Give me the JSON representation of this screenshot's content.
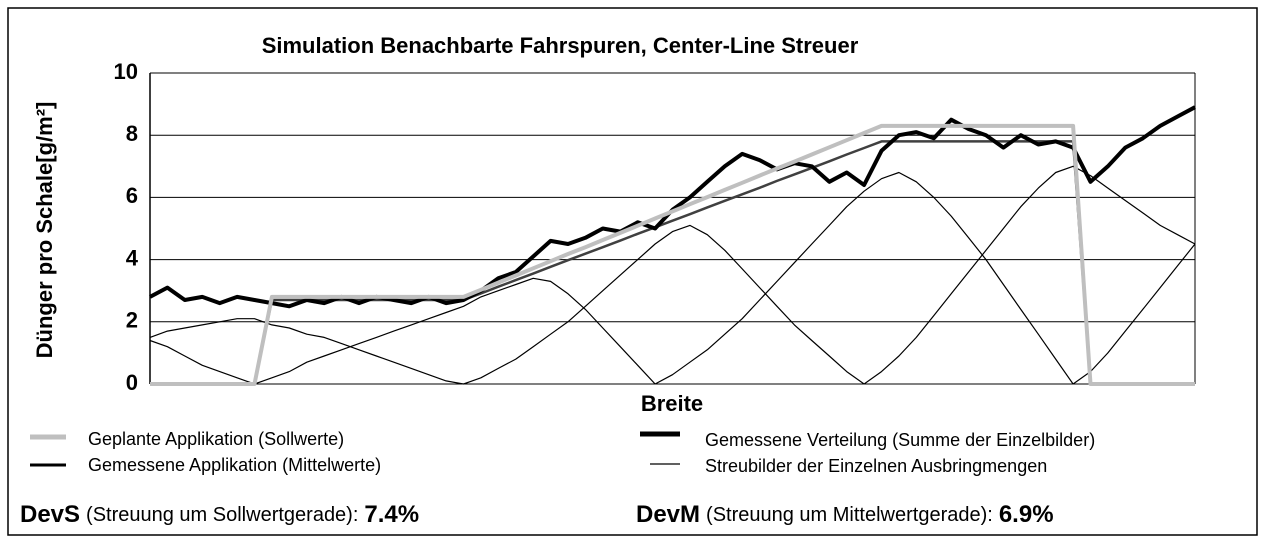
{
  "chart_data": {
    "type": "line",
    "title": "Simulation Benachbarte Fahrspuren, Center-Line Streuer",
    "xlabel": "Breite",
    "ylabel": "Dünger pro Schale[g/m²]",
    "ylim": [
      0,
      10
    ],
    "yticks": [
      0,
      2,
      4,
      6,
      8,
      10
    ],
    "grid": true,
    "categories": [
      null,
      null,
      null,
      null,
      null,
      null,
      null,
      null,
      null,
      null,
      null,
      null,
      null,
      null,
      null,
      null,
      null,
      null,
      null,
      null,
      null,
      null,
      null,
      null,
      null,
      null,
      null,
      null,
      null,
      null,
      null,
      null,
      null,
      null,
      null,
      null,
      null,
      null,
      null,
      null,
      null,
      null,
      null,
      null,
      null,
      null,
      null,
      null,
      null,
      null,
      null,
      null,
      null,
      null,
      null,
      null,
      null,
      null,
      null,
      null,
      null
    ],
    "series": [
      {
        "name": "Geplante Applikation (Sollwerte)",
        "color": "#bfbfbf",
        "width": 4,
        "values": [
          0,
          0,
          0,
          0,
          0,
          0,
          0,
          2.8,
          2.8,
          2.8,
          2.8,
          2.8,
          2.8,
          2.8,
          2.8,
          2.8,
          2.8,
          2.8,
          2.8,
          3.03,
          3.26,
          3.49,
          3.72,
          3.95,
          4.18,
          4.4,
          4.63,
          4.86,
          5.09,
          5.32,
          5.55,
          5.78,
          6.01,
          6.24,
          6.47,
          6.7,
          6.93,
          7.15,
          7.38,
          7.61,
          7.84,
          8.07,
          8.3,
          8.3,
          8.3,
          8.3,
          8.3,
          8.3,
          8.3,
          8.3,
          8.3,
          8.3,
          8.3,
          8.3,
          0,
          0,
          0,
          0,
          0,
          0,
          0
        ]
      },
      {
        "name": "Gemessene Applikation (Mittelwerte)",
        "color": "#404040",
        "width": 2.5,
        "values": [
          0,
          0,
          0,
          0,
          0,
          0,
          0,
          2.7,
          2.7,
          2.7,
          2.7,
          2.7,
          2.7,
          2.7,
          2.7,
          2.7,
          2.7,
          2.7,
          2.7,
          2.91,
          3.13,
          3.34,
          3.55,
          3.77,
          3.98,
          4.19,
          4.4,
          4.61,
          4.83,
          5.04,
          5.25,
          5.46,
          5.68,
          5.89,
          6.1,
          6.31,
          6.53,
          6.74,
          6.95,
          7.16,
          7.38,
          7.59,
          7.8,
          7.8,
          7.8,
          7.8,
          7.8,
          7.8,
          7.8,
          7.8,
          7.8,
          7.8,
          7.8,
          7.8,
          0,
          0,
          0,
          0,
          0,
          0,
          0
        ]
      },
      {
        "name": "Gemessene Verteilung (Summe der Einzelbilder)",
        "color": "#000000",
        "width": 4,
        "values": [
          2.8,
          3.1,
          2.7,
          2.8,
          2.6,
          2.8,
          2.7,
          2.6,
          2.5,
          2.7,
          2.6,
          2.8,
          2.6,
          2.8,
          2.7,
          2.6,
          2.8,
          2.6,
          2.7,
          3.0,
          3.4,
          3.6,
          4.1,
          4.6,
          4.5,
          4.7,
          5.0,
          4.9,
          5.2,
          5.0,
          5.6,
          6.0,
          6.5,
          7.0,
          7.4,
          7.2,
          6.9,
          7.1,
          7.0,
          6.5,
          6.8,
          6.4,
          7.5,
          8.0,
          8.1,
          7.9,
          8.5,
          8.2,
          8.0,
          7.6,
          8.0,
          7.7,
          7.8,
          7.6,
          6.5,
          7.0,
          7.6,
          7.9,
          8.3,
          8.6,
          8.9
        ]
      },
      {
        "name": "Streubilder der Einzelnen Ausbringmengen",
        "color": "#000000",
        "width": 1.2,
        "curves": [
          [
            1.4,
            1.2,
            0.9,
            0.6,
            0.4,
            0.2,
            0,
            null,
            null,
            null,
            null,
            null,
            null,
            null,
            null,
            null,
            null,
            null,
            null,
            null,
            null,
            null,
            null,
            null,
            null,
            null,
            null,
            null,
            null,
            null,
            null,
            null,
            null,
            null,
            null,
            null,
            null,
            null,
            null,
            null,
            null,
            null,
            null,
            null,
            null,
            null,
            null,
            null,
            null,
            null,
            null,
            null,
            null,
            null,
            null,
            null,
            null,
            null,
            null,
            null,
            null
          ],
          [
            1.5,
            1.7,
            1.8,
            1.9,
            2.0,
            2.1,
            2.1,
            1.9,
            1.8,
            1.6,
            1.5,
            1.3,
            1.1,
            0.9,
            0.7,
            0.5,
            0.3,
            0.1,
            0,
            null,
            null,
            null,
            null,
            null,
            null,
            null,
            null,
            null,
            null,
            null,
            null,
            null,
            null,
            null,
            null,
            null,
            null,
            null,
            null,
            null,
            null,
            null,
            null,
            null,
            null,
            null,
            null,
            null,
            null,
            null,
            null,
            null,
            null,
            null,
            null,
            null,
            null,
            null,
            null,
            null,
            null
          ],
          [
            null,
            null,
            null,
            null,
            null,
            null,
            0,
            0.2,
            0.4,
            0.7,
            0.9,
            1.1,
            1.3,
            1.5,
            1.7,
            1.9,
            2.1,
            2.3,
            2.5,
            2.8,
            3.0,
            3.2,
            3.4,
            3.3,
            2.9,
            2.4,
            1.8,
            1.2,
            0.6,
            0,
            null,
            null,
            null,
            null,
            null,
            null,
            null,
            null,
            null,
            null,
            null,
            null,
            null,
            null,
            null,
            null,
            null,
            null,
            null,
            null,
            null,
            null,
            null,
            null,
            null,
            null,
            null,
            null,
            null,
            null,
            null
          ],
          [
            null,
            null,
            null,
            null,
            null,
            null,
            null,
            null,
            null,
            null,
            null,
            null,
            null,
            null,
            null,
            null,
            null,
            null,
            0,
            0.2,
            0.5,
            0.8,
            1.2,
            1.6,
            2.0,
            2.5,
            3.0,
            3.5,
            4.0,
            4.5,
            4.9,
            5.1,
            4.8,
            4.3,
            3.7,
            3.1,
            2.5,
            1.9,
            1.4,
            0.9,
            0.4,
            0,
            null,
            null,
            null,
            null,
            null,
            null,
            null,
            null,
            null,
            null,
            null,
            null,
            null,
            null,
            null,
            null,
            null,
            null,
            null
          ],
          [
            null,
            null,
            null,
            null,
            null,
            null,
            null,
            null,
            null,
            null,
            null,
            null,
            null,
            null,
            null,
            null,
            null,
            null,
            null,
            null,
            null,
            null,
            null,
            null,
            null,
            null,
            null,
            null,
            null,
            0,
            0.3,
            0.7,
            1.1,
            1.6,
            2.1,
            2.7,
            3.3,
            3.9,
            4.5,
            5.1,
            5.7,
            6.2,
            6.6,
            6.8,
            6.5,
            6.0,
            5.4,
            4.7,
            4.0,
            3.2,
            2.4,
            1.6,
            0.8,
            0,
            null,
            null,
            null,
            null,
            null,
            null,
            null
          ],
          [
            null,
            null,
            null,
            null,
            null,
            null,
            null,
            null,
            null,
            null,
            null,
            null,
            null,
            null,
            null,
            null,
            null,
            null,
            null,
            null,
            null,
            null,
            null,
            null,
            null,
            null,
            null,
            null,
            null,
            null,
            null,
            null,
            null,
            null,
            null,
            null,
            null,
            null,
            null,
            null,
            null,
            0,
            0.4,
            0.9,
            1.5,
            2.2,
            2.9,
            3.6,
            4.3,
            5.0,
            5.7,
            6.3,
            6.8,
            7.0,
            6.7,
            6.3,
            5.9,
            5.5,
            5.1,
            4.8,
            4.5
          ],
          [
            null,
            null,
            null,
            null,
            null,
            null,
            null,
            null,
            null,
            null,
            null,
            null,
            null,
            null,
            null,
            null,
            null,
            null,
            null,
            null,
            null,
            null,
            null,
            null,
            null,
            null,
            null,
            null,
            null,
            null,
            null,
            null,
            null,
            null,
            null,
            null,
            null,
            null,
            null,
            null,
            null,
            null,
            null,
            null,
            null,
            null,
            null,
            null,
            null,
            null,
            null,
            null,
            null,
            0,
            0.4,
            1.0,
            1.7,
            2.4,
            3.1,
            3.8,
            4.5
          ]
        ]
      }
    ],
    "annotations": [
      {
        "label": "DevS",
        "text": "(Streuung um Sollwertgerade):",
        "value": "7.4%"
      },
      {
        "label": "DevM",
        "text": "(Streuung um Mittelwertgerade):",
        "value": "6.9%"
      }
    ]
  }
}
